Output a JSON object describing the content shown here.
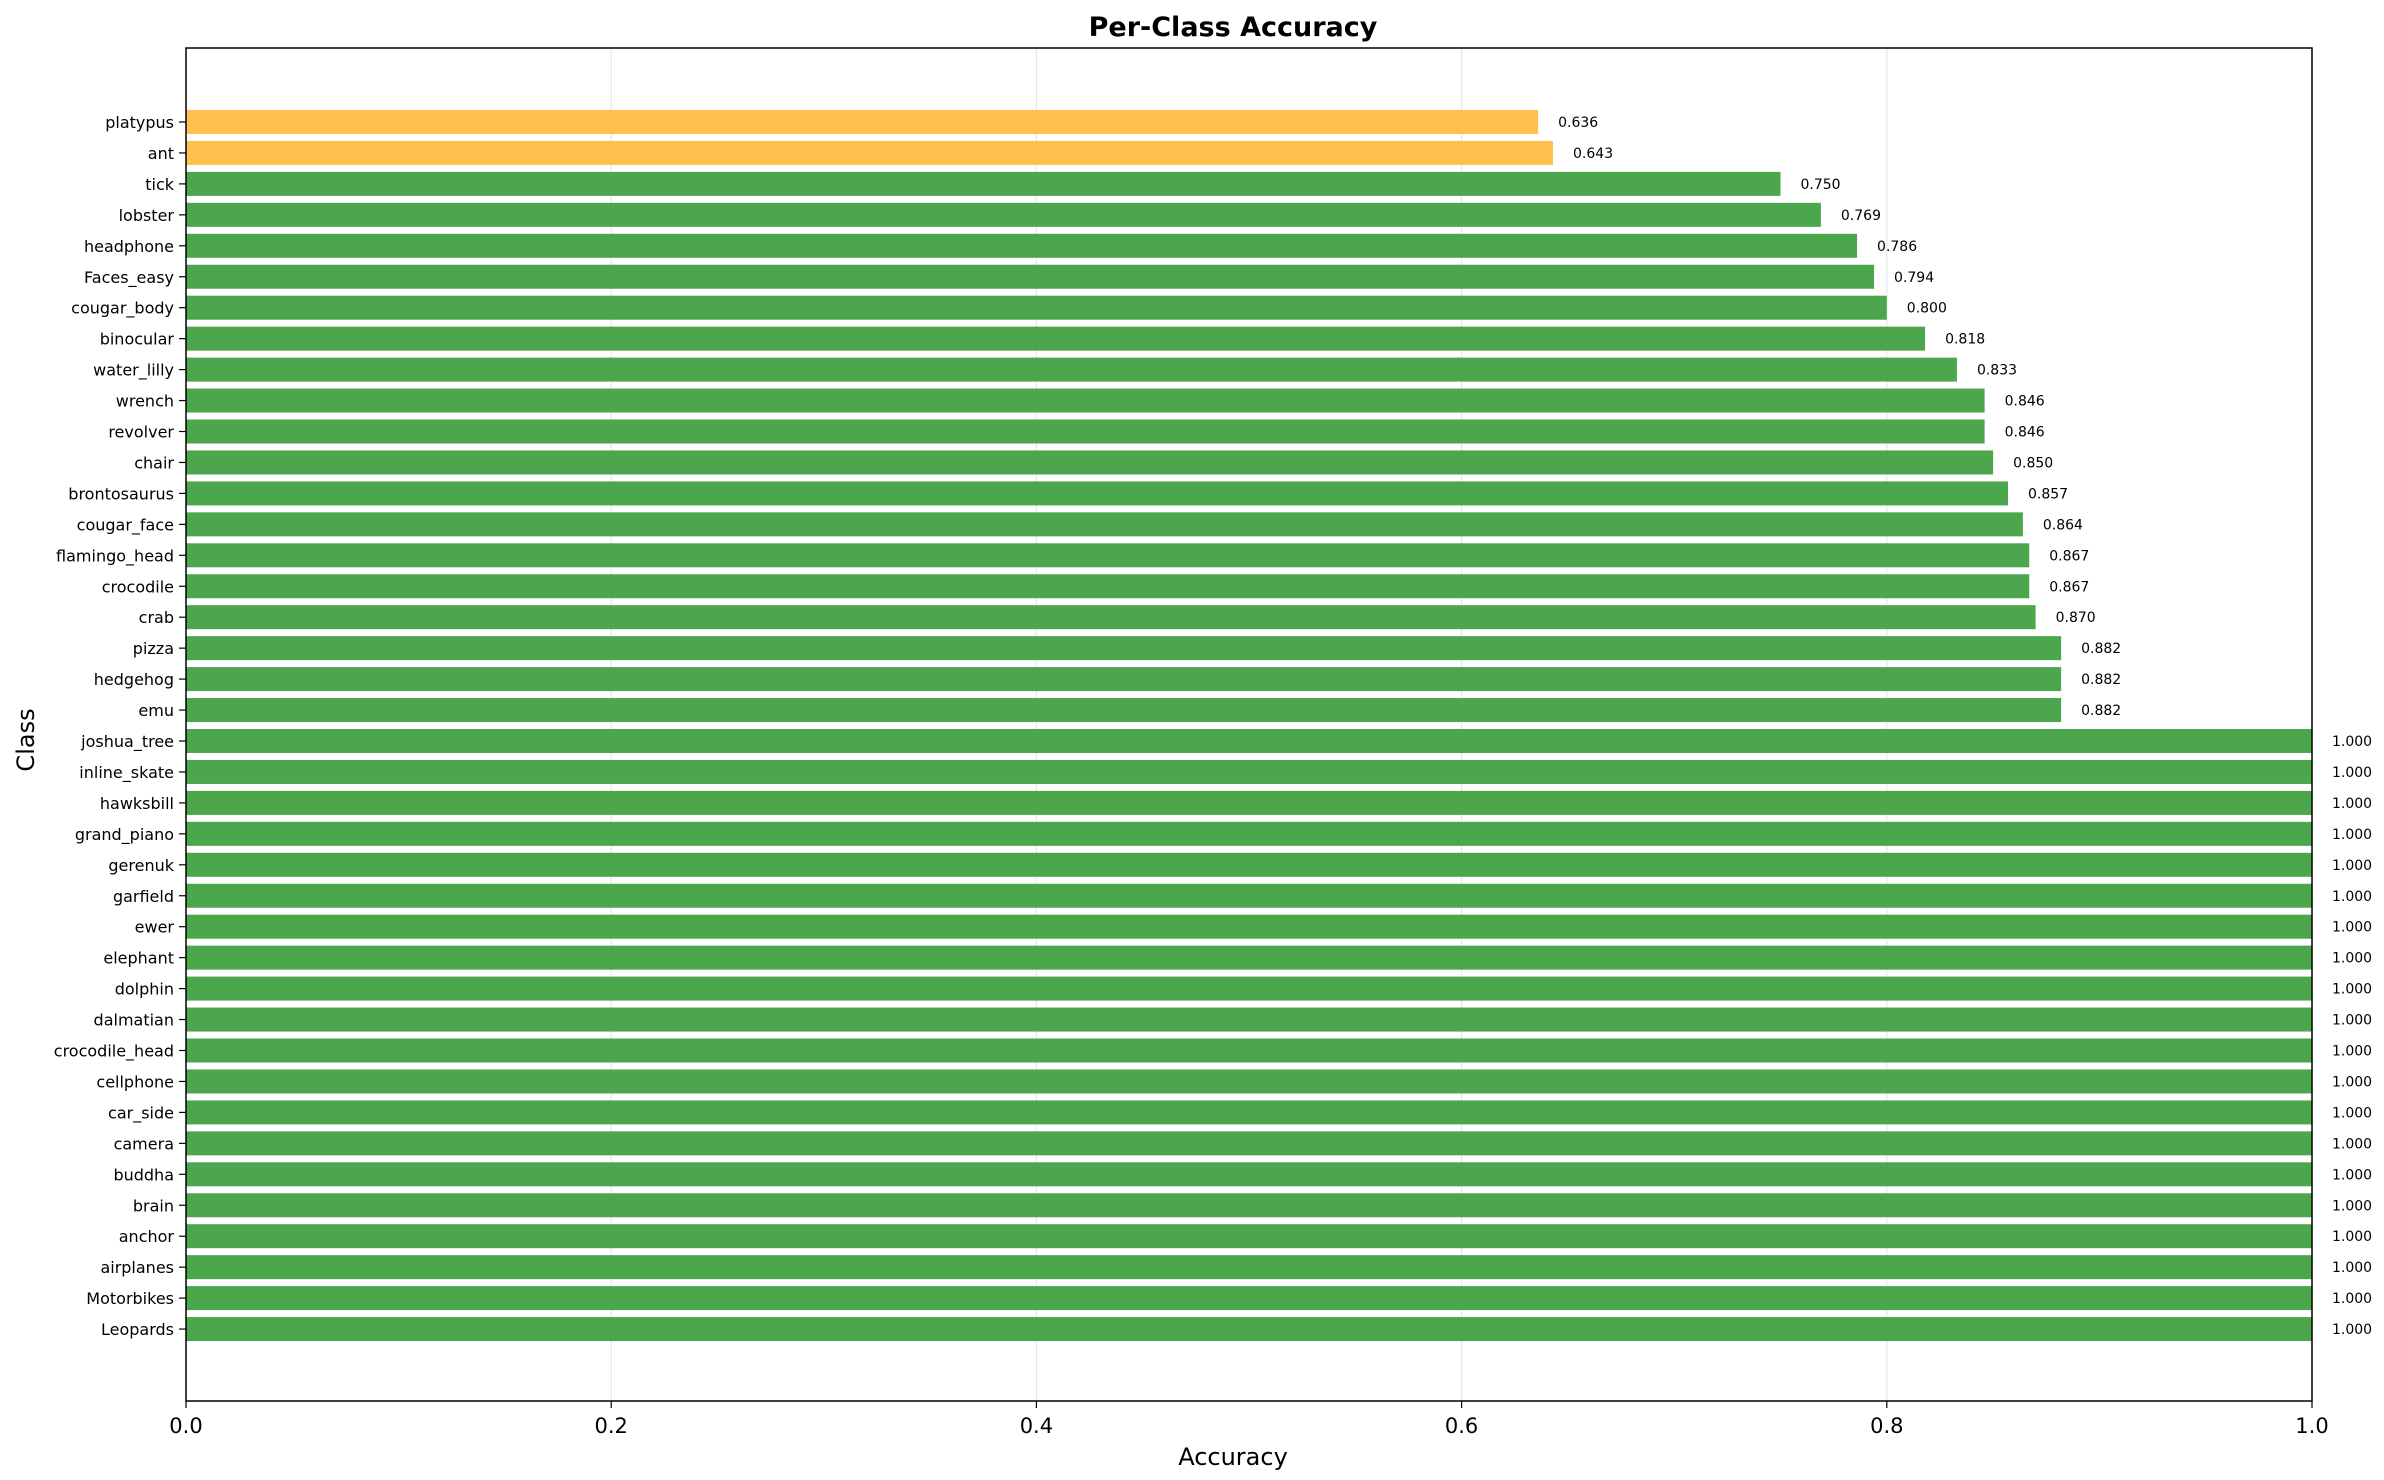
{
  "chart_data": {
    "type": "bar",
    "orientation": "horizontal",
    "title": "Per-Class Accuracy",
    "xlabel": "Accuracy",
    "ylabel": "Class",
    "xlim": [
      0,
      1
    ],
    "xticks": [
      "0.0",
      "0.2",
      "0.4",
      "0.6",
      "0.8",
      "1.0"
    ],
    "grid": "vertical",
    "colors": {
      "high": "#4ca64c",
      "low": "#ffc04d"
    },
    "categories": [
      "platypus",
      "ant",
      "tick",
      "lobster",
      "headphone",
      "Faces_easy",
      "cougar_body",
      "binocular",
      "water_lilly",
      "wrench",
      "revolver",
      "chair",
      "brontosaurus",
      "cougar_face",
      "flamingo_head",
      "crocodile",
      "crab",
      "pizza",
      "hedgehog",
      "emu",
      "joshua_tree",
      "inline_skate",
      "hawksbill",
      "grand_piano",
      "gerenuk",
      "garfield",
      "ewer",
      "elephant",
      "dolphin",
      "dalmatian",
      "crocodile_head",
      "cellphone",
      "car_side",
      "camera",
      "buddha",
      "brain",
      "anchor",
      "airplanes",
      "Motorbikes",
      "Leopards"
    ],
    "values": [
      0.636,
      0.643,
      0.75,
      0.769,
      0.786,
      0.794,
      0.8,
      0.818,
      0.833,
      0.846,
      0.846,
      0.85,
      0.857,
      0.864,
      0.867,
      0.867,
      0.87,
      0.882,
      0.882,
      0.882,
      1.0,
      1.0,
      1.0,
      1.0,
      1.0,
      1.0,
      1.0,
      1.0,
      1.0,
      1.0,
      1.0,
      1.0,
      1.0,
      1.0,
      1.0,
      1.0,
      1.0,
      1.0,
      1.0,
      1.0
    ],
    "value_labels": [
      "0.636",
      "0.643",
      "0.750",
      "0.769",
      "0.786",
      "0.794",
      "0.800",
      "0.818",
      "0.833",
      "0.846",
      "0.846",
      "0.850",
      "0.857",
      "0.864",
      "0.867",
      "0.867",
      "0.870",
      "0.882",
      "0.882",
      "0.882",
      "1.000",
      "1.000",
      "1.000",
      "1.000",
      "1.000",
      "1.000",
      "1.000",
      "1.000",
      "1.000",
      "1.000",
      "1.000",
      "1.000",
      "1.000",
      "1.000",
      "1.000",
      "1.000",
      "1.000",
      "1.000",
      "1.000",
      "1.000"
    ],
    "bar_color_groups": [
      "low",
      "low",
      "high",
      "high",
      "high",
      "high",
      "high",
      "high",
      "high",
      "high",
      "high",
      "high",
      "high",
      "high",
      "high",
      "high",
      "high",
      "high",
      "high",
      "high",
      "high",
      "high",
      "high",
      "high",
      "high",
      "high",
      "high",
      "high",
      "high",
      "high",
      "high",
      "high",
      "high",
      "high",
      "high",
      "high",
      "high",
      "high",
      "high",
      "high"
    ]
  }
}
